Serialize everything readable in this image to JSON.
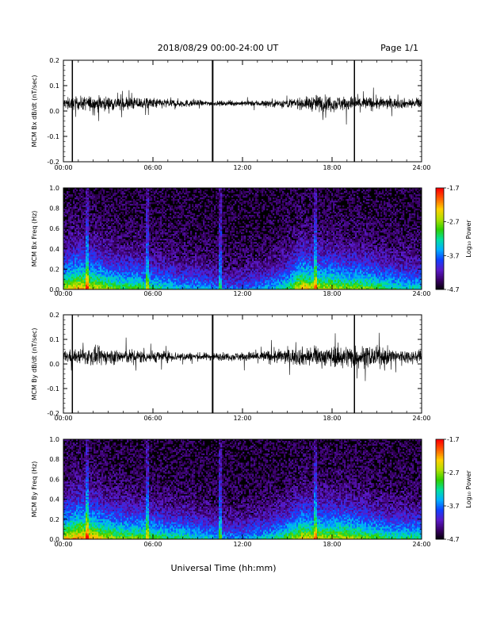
{
  "header": {
    "title": "2018/08/29  00:00-24:00 UT",
    "page": "Page 1/1"
  },
  "xlabel": "Universal Time (hh:mm)",
  "colors": {
    "trace": "#000000",
    "background": "#ffffff"
  },
  "colorbar": {
    "label": "Log₁₀ Power",
    "ticks": [
      "-1.7",
      "-2.7",
      "-3.7",
      "-4.7"
    ],
    "tick_values": [
      -1.7,
      -2.7,
      -3.7,
      -4.7
    ],
    "range": [
      -4.7,
      -1.7
    ],
    "colormap": [
      "#000000",
      "#3a0066",
      "#5a1ac8",
      "#1040ff",
      "#00b0ff",
      "#00e0a0",
      "#30d000",
      "#b0e000",
      "#ffd000",
      "#ff6000",
      "#ff0000"
    ]
  },
  "chart_data": [
    {
      "type": "line",
      "ylabel": "MCM Bx dB/dt (nT/sec)",
      "xlim": [
        0,
        24
      ],
      "ylim": [
        -0.2,
        0.2
      ],
      "x_ticks": [
        "00:00",
        "06:00",
        "12:00",
        "18:00",
        "24:00"
      ],
      "y_ticks": [
        "0.2",
        "0.1",
        "0.0",
        "-0.1",
        "-0.2"
      ],
      "y_tick_values": [
        0.2,
        0.1,
        0.0,
        -0.1,
        -0.2
      ],
      "baseline": 0.03,
      "amplitude_envelope": [
        [
          0,
          0.035
        ],
        [
          1,
          0.04
        ],
        [
          2,
          0.05
        ],
        [
          3,
          0.045
        ],
        [
          4,
          0.045
        ],
        [
          5,
          0.04
        ],
        [
          6,
          0.035
        ],
        [
          7,
          0.03
        ],
        [
          8,
          0.025
        ],
        [
          9,
          0.02
        ],
        [
          10,
          0.015
        ],
        [
          11,
          0.015
        ],
        [
          12,
          0.015
        ],
        [
          13,
          0.02
        ],
        [
          14,
          0.025
        ],
        [
          15,
          0.03
        ],
        [
          16,
          0.035
        ],
        [
          17,
          0.055
        ],
        [
          18,
          0.05
        ],
        [
          19,
          0.045
        ],
        [
          20,
          0.045
        ],
        [
          21,
          0.04
        ],
        [
          22,
          0.035
        ],
        [
          23,
          0.03
        ],
        [
          24,
          0.03
        ]
      ],
      "spikes": [
        {
          "t": 0.6,
          "ymin": -0.2,
          "ymax": 0.2
        },
        {
          "t": 10.0,
          "ymin": -0.2,
          "ymax": 0.2
        },
        {
          "t": 19.5,
          "ymin": -0.2,
          "ymax": 0.2
        }
      ]
    },
    {
      "type": "heatmap",
      "ylabel": "MCM Bx Freq (Hz)",
      "xlim": [
        0,
        24
      ],
      "ylim": [
        0,
        1
      ],
      "x_ticks": [
        "00:00",
        "06:00",
        "12:00",
        "18:00",
        "24:00"
      ],
      "y_ticks": [
        "1.0",
        "0.8",
        "0.6",
        "0.4",
        "0.2",
        "0.0"
      ],
      "y_tick_values": [
        1.0,
        0.8,
        0.6,
        0.4,
        0.2,
        0.0
      ],
      "zlim": [
        -4.7,
        -1.7
      ],
      "activity_profile": [
        [
          0,
          0.6
        ],
        [
          1,
          0.7
        ],
        [
          2,
          0.65
        ],
        [
          3,
          0.55
        ],
        [
          4,
          0.5
        ],
        [
          5,
          0.5
        ],
        [
          6,
          0.45
        ],
        [
          7,
          0.4
        ],
        [
          8,
          0.35
        ],
        [
          9,
          0.35
        ],
        [
          10,
          0.3
        ],
        [
          11,
          0.25
        ],
        [
          12,
          0.25
        ],
        [
          13,
          0.3
        ],
        [
          14,
          0.35
        ],
        [
          15,
          0.45
        ],
        [
          16,
          0.7
        ],
        [
          17,
          0.6
        ],
        [
          18,
          0.6
        ],
        [
          19,
          0.55
        ],
        [
          20,
          0.55
        ],
        [
          21,
          0.5
        ],
        [
          22,
          0.45
        ],
        [
          23,
          0.4
        ],
        [
          24,
          0.4
        ]
      ],
      "line_features": [
        1.6,
        5.6,
        10.5,
        16.9
      ]
    },
    {
      "type": "line",
      "ylabel": "MCM By dB/dt (nT/sec)",
      "xlim": [
        0,
        24
      ],
      "ylim": [
        -0.2,
        0.2
      ],
      "x_ticks": [
        "00:00",
        "06:00",
        "12:00",
        "18:00",
        "24:00"
      ],
      "y_ticks": [
        "0.2",
        "0.1",
        "0.0",
        "-0.1",
        "-0.2"
      ],
      "y_tick_values": [
        0.2,
        0.1,
        0.0,
        -0.1,
        -0.2
      ],
      "baseline": 0.03,
      "amplitude_envelope": [
        [
          0,
          0.04
        ],
        [
          1,
          0.045
        ],
        [
          2,
          0.06
        ],
        [
          3,
          0.05
        ],
        [
          4,
          0.05
        ],
        [
          5,
          0.045
        ],
        [
          6,
          0.04
        ],
        [
          7,
          0.035
        ],
        [
          8,
          0.03
        ],
        [
          9,
          0.025
        ],
        [
          10,
          0.025
        ],
        [
          11,
          0.025
        ],
        [
          12,
          0.03
        ],
        [
          13,
          0.035
        ],
        [
          14,
          0.045
        ],
        [
          15,
          0.05
        ],
        [
          16,
          0.06
        ],
        [
          17,
          0.06
        ],
        [
          18,
          0.065
        ],
        [
          19,
          0.075
        ],
        [
          20,
          0.07
        ],
        [
          21,
          0.065
        ],
        [
          22,
          0.055
        ],
        [
          23,
          0.045
        ],
        [
          24,
          0.04
        ]
      ],
      "spikes": [
        {
          "t": 0.6,
          "ymin": -0.2,
          "ymax": 0.2
        },
        {
          "t": 10.0,
          "ymin": -0.2,
          "ymax": 0.2
        },
        {
          "t": 19.5,
          "ymin": -0.2,
          "ymax": 0.2
        }
      ]
    },
    {
      "type": "heatmap",
      "ylabel": "MCM By Freq (Hz)",
      "xlim": [
        0,
        24
      ],
      "ylim": [
        0,
        1
      ],
      "x_ticks": [
        "00:00",
        "06:00",
        "12:00",
        "18:00",
        "24:00"
      ],
      "y_ticks": [
        "1.0",
        "0.8",
        "0.6",
        "0.4",
        "0.2",
        "0.0"
      ],
      "y_tick_values": [
        1.0,
        0.8,
        0.6,
        0.4,
        0.2,
        0.0
      ],
      "zlim": [
        -4.7,
        -1.7
      ],
      "activity_profile": [
        [
          0,
          0.65
        ],
        [
          1,
          0.75
        ],
        [
          2,
          0.7
        ],
        [
          3,
          0.6
        ],
        [
          4,
          0.55
        ],
        [
          5,
          0.55
        ],
        [
          6,
          0.5
        ],
        [
          7,
          0.45
        ],
        [
          8,
          0.45
        ],
        [
          9,
          0.4
        ],
        [
          10,
          0.35
        ],
        [
          11,
          0.3
        ],
        [
          12,
          0.3
        ],
        [
          13,
          0.35
        ],
        [
          14,
          0.4
        ],
        [
          15,
          0.5
        ],
        [
          16,
          0.65
        ],
        [
          17,
          0.6
        ],
        [
          18,
          0.6
        ],
        [
          19,
          0.6
        ],
        [
          20,
          0.55
        ],
        [
          21,
          0.5
        ],
        [
          22,
          0.45
        ],
        [
          23,
          0.45
        ],
        [
          24,
          0.45
        ]
      ],
      "line_features": [
        1.6,
        5.6,
        10.5,
        16.9
      ]
    }
  ]
}
